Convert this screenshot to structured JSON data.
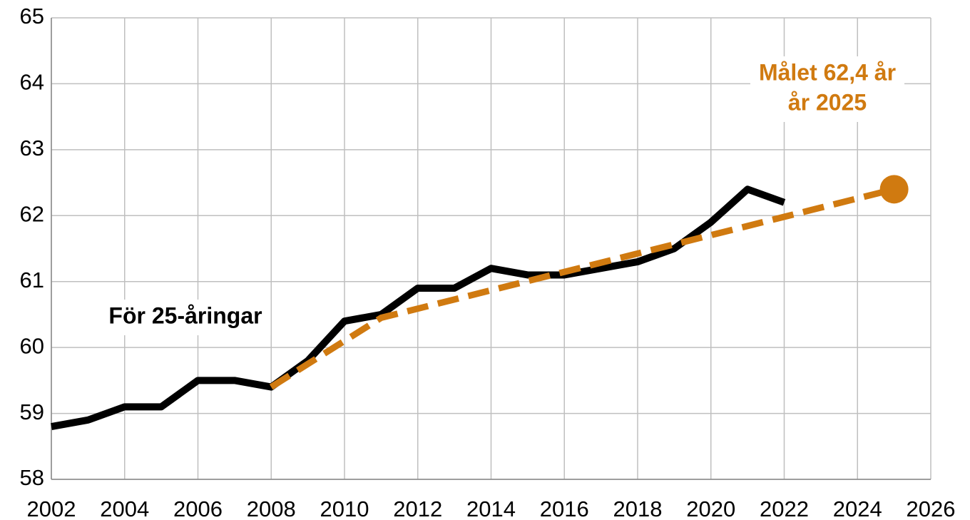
{
  "chart_data": {
    "type": "line",
    "xlim": [
      2002,
      2026
    ],
    "xticks": [
      2002,
      2004,
      2006,
      2008,
      2010,
      2012,
      2014,
      2016,
      2018,
      2020,
      2022,
      2024,
      2026
    ],
    "ylim": [
      58,
      65
    ],
    "yticks": [
      58,
      59,
      60,
      61,
      62,
      63,
      64,
      65
    ],
    "grid": true,
    "series": [
      {
        "color": "#000000",
        "dashed": false,
        "x": [
          2002,
          2003,
          2004,
          2005,
          2006,
          2007,
          2008,
          2009,
          2010,
          2011,
          2012,
          2013,
          2014,
          2015,
          2016,
          2017,
          2018,
          2019,
          2020,
          2021,
          2022
        ],
        "values": [
          58.8,
          58.9,
          59.1,
          59.1,
          59.5,
          59.5,
          59.4,
          59.8,
          60.4,
          60.5,
          60.9,
          60.9,
          61.2,
          61.1,
          61.1,
          61.2,
          61.3,
          61.5,
          61.9,
          62.4,
          62.2
        ]
      },
      {
        "color": "#d07a10",
        "dashed": true,
        "end_marker": true,
        "x": [
          2008,
          2011,
          2025
        ],
        "values": [
          59.4,
          60.45,
          62.4
        ]
      }
    ],
    "annotations": [
      {
        "lines": [
          "För 25-åringar"
        ],
        "color": "#000000"
      },
      {
        "lines": [
          "Målet 62,4 år",
          "år 2025"
        ],
        "color": "#d07a10"
      }
    ]
  }
}
